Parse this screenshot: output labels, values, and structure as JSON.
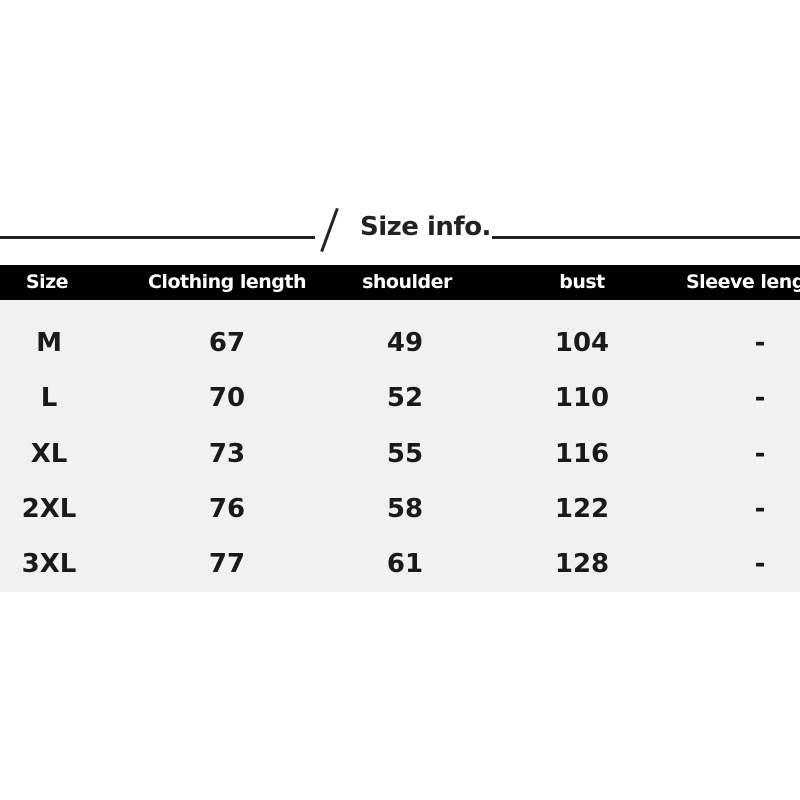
{
  "title": "Size info.",
  "headers": [
    "Size",
    "Clothing length",
    "shoulder",
    "bust",
    "Sleeve leng"
  ],
  "rows": [
    [
      "M",
      "67",
      "49",
      "104",
      "-"
    ],
    [
      "L",
      "70",
      "52",
      "110",
      "-"
    ],
    [
      "XL",
      "73",
      "55",
      "116",
      "-"
    ],
    [
      "2XL",
      "76",
      "58",
      "122",
      "-"
    ],
    [
      "3XL",
      "77",
      "61",
      "128",
      "-"
    ]
  ]
}
